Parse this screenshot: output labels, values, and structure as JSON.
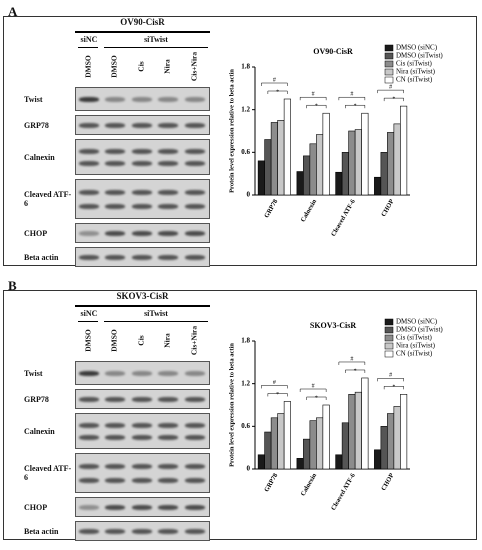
{
  "figure": [
    {
      "label": "A",
      "blot": {
        "title": "OV90-CisR",
        "groups": [
          "siNC",
          "siTwist"
        ],
        "lanes": [
          "DMSO",
          "DMSO",
          "Cis",
          "Nira",
          "Cis+Nira"
        ],
        "proteins": [
          "Twist",
          "GRP78",
          "Calnexin",
          "Cleaved ATF-6",
          "CHOP",
          "Beta actin"
        ]
      }
    },
    {
      "label": "B",
      "blot": {
        "title": "SKOV3-CisR",
        "groups": [
          "siNC",
          "siTwist"
        ],
        "lanes": [
          "DMSO",
          "DMSO",
          "Cis",
          "Nira",
          "Cis+Nira"
        ],
        "proteins": [
          "Twist",
          "GRP78",
          "Calnexin",
          "Cleaved ATF-6",
          "CHOP",
          "Beta actin"
        ]
      }
    }
  ],
  "chart_data": [
    {
      "type": "bar",
      "title": "OV90-CisR",
      "y_label": "Protein level expression relative to beta actin",
      "categories": [
        "GRP78",
        "Calnexin",
        "Cleaved ATF-6",
        "CHOP"
      ],
      "series": [
        {
          "name": "DMSO (siNC)",
          "color": "#1a1a1a",
          "values": [
            0.48,
            0.33,
            0.32,
            0.25
          ]
        },
        {
          "name": "DMSO (siTwist)",
          "color": "#555555",
          "values": [
            0.78,
            0.55,
            0.6,
            0.6
          ]
        },
        {
          "name": "Cis (siTwist)",
          "color": "#8c8c8c",
          "values": [
            1.02,
            0.72,
            0.9,
            0.88
          ]
        },
        {
          "name": "Nira (siTwist)",
          "color": "#c8c8c8",
          "values": [
            1.05,
            0.85,
            0.92,
            1.0
          ]
        },
        {
          "name": "CN (siTwist)",
          "color": "#ffffff",
          "values": [
            1.35,
            1.15,
            1.15,
            1.25
          ]
        }
      ],
      "ylim": [
        0,
        1.8
      ],
      "yticks": [
        0,
        0.6,
        1.2,
        1.8
      ],
      "significance": [
        "#",
        "*"
      ],
      "legend": "top-right"
    },
    {
      "type": "bar",
      "title": "SKOV3-CisR",
      "y_label": "Protein level expression relative to beta actin",
      "categories": [
        "GRP78",
        "Calnexin",
        "Cleaved ATF-6",
        "CHOP"
      ],
      "series": [
        {
          "name": "DMSO (siNC)",
          "color": "#1a1a1a",
          "values": [
            0.2,
            0.15,
            0.2,
            0.27
          ]
        },
        {
          "name": "DMSO (siTwist)",
          "color": "#555555",
          "values": [
            0.52,
            0.42,
            0.65,
            0.6
          ]
        },
        {
          "name": "Cis (siTwist)",
          "color": "#8c8c8c",
          "values": [
            0.72,
            0.68,
            1.05,
            0.78
          ]
        },
        {
          "name": "Nira (siTwist)",
          "color": "#c8c8c8",
          "values": [
            0.78,
            0.72,
            1.08,
            0.88
          ]
        },
        {
          "name": "CN (siTwist)",
          "color": "#ffffff",
          "values": [
            0.95,
            0.9,
            1.28,
            1.05
          ]
        }
      ],
      "ylim": [
        0,
        1.8
      ],
      "yticks": [
        0,
        0.6,
        1.2,
        1.8
      ],
      "significance": [
        "#",
        "*"
      ],
      "legend": "top-right"
    }
  ]
}
